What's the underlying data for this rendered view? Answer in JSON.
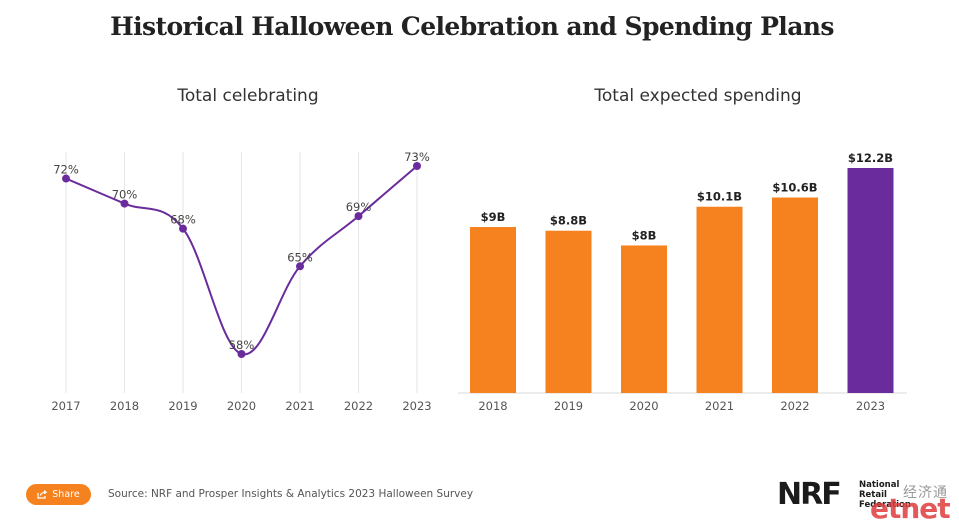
{
  "title": "Historical Halloween Celebration and Spending Plans",
  "chart_data": [
    {
      "type": "line",
      "title": "Total celebrating",
      "x": [
        "2017",
        "2018",
        "2019",
        "2020",
        "2021",
        "2022",
        "2023"
      ],
      "values": [
        72,
        70,
        68,
        58,
        65,
        69,
        73
      ],
      "data_labels": [
        "72%",
        "70%",
        "68%",
        "58%",
        "65%",
        "69%",
        "73%"
      ],
      "color": "#6a2c9c",
      "grid": "vertical"
    },
    {
      "type": "bar",
      "title": "Total expected spending",
      "categories": [
        "2018",
        "2019",
        "2020",
        "2021",
        "2022",
        "2023"
      ],
      "values": [
        9,
        8.8,
        8,
        10.1,
        10.6,
        12.2
      ],
      "data_labels": [
        "$9B",
        "$8.8B",
        "$8B",
        "$10.1B",
        "$10.6B",
        "$12.2B"
      ],
      "colors": [
        "#f5821f",
        "#f5821f",
        "#f5821f",
        "#f5821f",
        "#f5821f",
        "#6a2c9c"
      ]
    }
  ],
  "footer": {
    "share_label": "Share",
    "source": "Source: NRF and Prosper Insights & Analytics 2023 Halloween Survey",
    "logo_mark": "NRF",
    "logo_words": [
      "National",
      "Retail",
      "Federation"
    ],
    "watermark_cn": "经济通",
    "watermark_en": "etnet"
  }
}
